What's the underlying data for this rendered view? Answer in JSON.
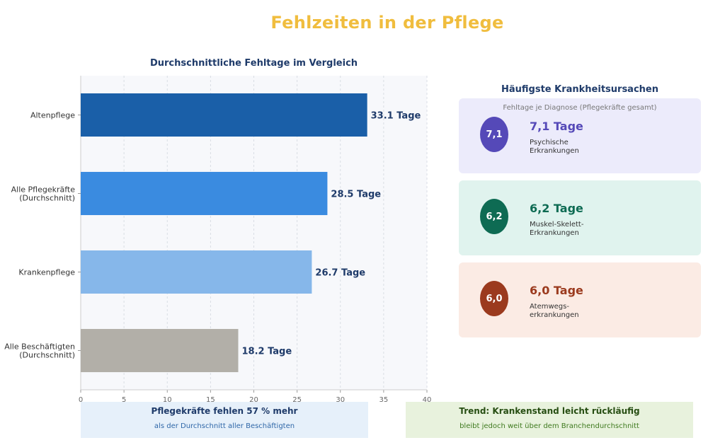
{
  "page": {
    "title": "Fehlzeiten in der Pflege",
    "colors": {
      "title": "#f0bd3e",
      "heading": "#1f3b6a"
    }
  },
  "chart_data": {
    "type": "bar",
    "orientation": "horizontal",
    "title": "Durchschnittliche Fehltage im Vergleich",
    "xlabel": "",
    "ylabel": "",
    "xlim": [
      0,
      40
    ],
    "xticks": [
      0,
      5,
      10,
      15,
      20,
      25,
      30,
      35,
      40
    ],
    "grid": true,
    "categories": [
      "Altenpflege",
      "Alle Pflegekräfte\n(Durchschnitt)",
      "Krankenpflege",
      "Alle Beschäftigten\n(Durchschnitt)"
    ],
    "values": [
      33.1,
      28.5,
      26.7,
      18.2
    ],
    "data_labels": [
      "33.1 Tage",
      "28.5 Tage",
      "26.7 Tage",
      "18.2 Tage"
    ],
    "colors": [
      "#1a5fa8",
      "#3a8be0",
      "#86b7ea",
      "#b2afa8"
    ]
  },
  "causes": {
    "title": "Häufigste Krankheitsursachen",
    "subtitle": "Fehltage je Diagnose (Pflegekräfte gesamt)",
    "items": [
      {
        "badge": "7,1",
        "value": "7,1 Tage",
        "label": "Psychische\nErkrankungen",
        "color": "#5549b8",
        "bg": "#ecebfb"
      },
      {
        "badge": "6,2",
        "value": "6,2 Tage",
        "label": "Muskel-Skelett-\nErkrankungen",
        "color": "#0e6b53",
        "bg": "#e0f3ee"
      },
      {
        "badge": "6,0",
        "value": "6,0 Tage",
        "label": "Atemwegs-\nerkrankungen",
        "color": "#9b3a1e",
        "bg": "#fbebe4"
      }
    ]
  },
  "banners": [
    {
      "title": "Pflegekräfte fehlen 57 % mehr",
      "subtitle": "als der Durchschnitt aller Beschäftigten",
      "title_color": "#1f3b6a",
      "sub_color": "#2f67a8",
      "bg": "#e6f0fa"
    },
    {
      "title": "Trend: Krankenstand leicht rückläufig",
      "subtitle": "bleibt jedoch weit über dem Branchendurchschnitt",
      "title_color": "#274e13",
      "sub_color": "#3f7a1f",
      "bg": "#e8f2dd"
    }
  ]
}
